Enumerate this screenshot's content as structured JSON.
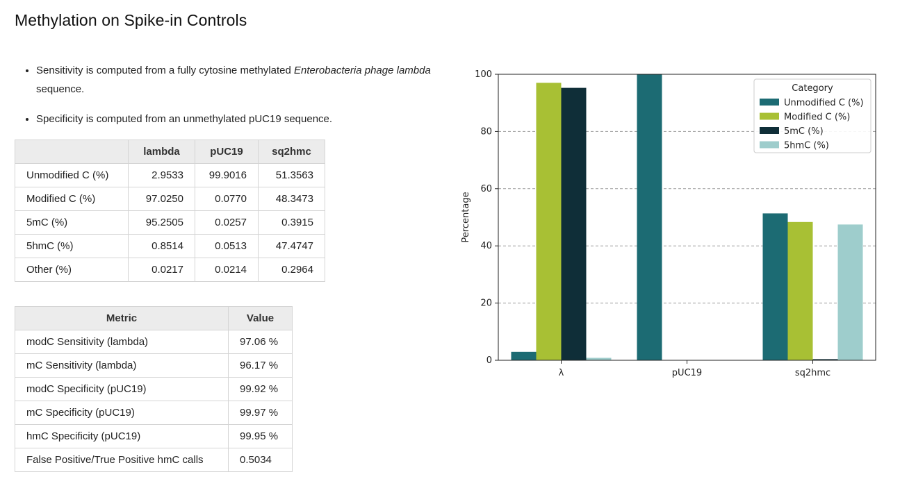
{
  "page": {
    "title": "Methylation on Spike-in Controls",
    "notes": [
      {
        "before": "Sensitivity is computed from a fully cytosine methylated ",
        "italic": "Enterobacteria phage lambda",
        "after": " sequence."
      },
      {
        "before": "Specificity is computed from an unmethylated pUC19 sequence.",
        "italic": "",
        "after": ""
      }
    ]
  },
  "table1": {
    "headers": [
      "",
      "lambda",
      "pUC19",
      "sq2hmc"
    ],
    "rows": [
      [
        "Unmodified C (%)",
        "2.9533",
        "99.9016",
        "51.3563"
      ],
      [
        "Modified C (%)",
        "97.0250",
        "0.0770",
        "48.3473"
      ],
      [
        "5mC (%)",
        "95.2505",
        "0.0257",
        "0.3915"
      ],
      [
        "5hmC (%)",
        "0.8514",
        "0.0513",
        "47.4747"
      ],
      [
        "Other (%)",
        "0.0217",
        "0.0214",
        "0.2964"
      ]
    ]
  },
  "table2": {
    "headers": [
      "Metric",
      "Value"
    ],
    "rows": [
      [
        "modC Sensitivity (lambda)",
        "97.06 %"
      ],
      [
        "mC Sensitivity (lambda)",
        "96.17 %"
      ],
      [
        "modC Specificity (pUC19)",
        "99.92 %"
      ],
      [
        "mC Specificity (pUC19)",
        "99.97 %"
      ],
      [
        "hmC Specificity (pUC19)",
        "99.95 %"
      ],
      [
        "False Positive/True Positive hmC calls",
        "0.5034"
      ]
    ]
  },
  "chart_data": {
    "type": "bar",
    "categories": [
      "λ",
      "pUC19",
      "sq2hmc"
    ],
    "series": [
      {
        "name": "Unmodified C (%)",
        "color": "#1c6b73",
        "values": [
          2.9533,
          99.9016,
          51.3563
        ]
      },
      {
        "name": "Modified C (%)",
        "color": "#a8c034",
        "values": [
          97.025,
          0.077,
          48.3473
        ]
      },
      {
        "name": "5mC (%)",
        "color": "#0f2e38",
        "values": [
          95.2505,
          0.0257,
          0.3915
        ]
      },
      {
        "name": "5hmC (%)",
        "color": "#9ecdcc",
        "values": [
          0.8514,
          0.0513,
          47.4747
        ]
      }
    ],
    "ylabel": "Percentage",
    "xlabel": "",
    "ylim": [
      0,
      100
    ],
    "yticks": [
      0,
      20,
      40,
      60,
      80,
      100
    ],
    "grid": "y-dashed",
    "legend_title": "Category",
    "legend_position": "top-right"
  }
}
